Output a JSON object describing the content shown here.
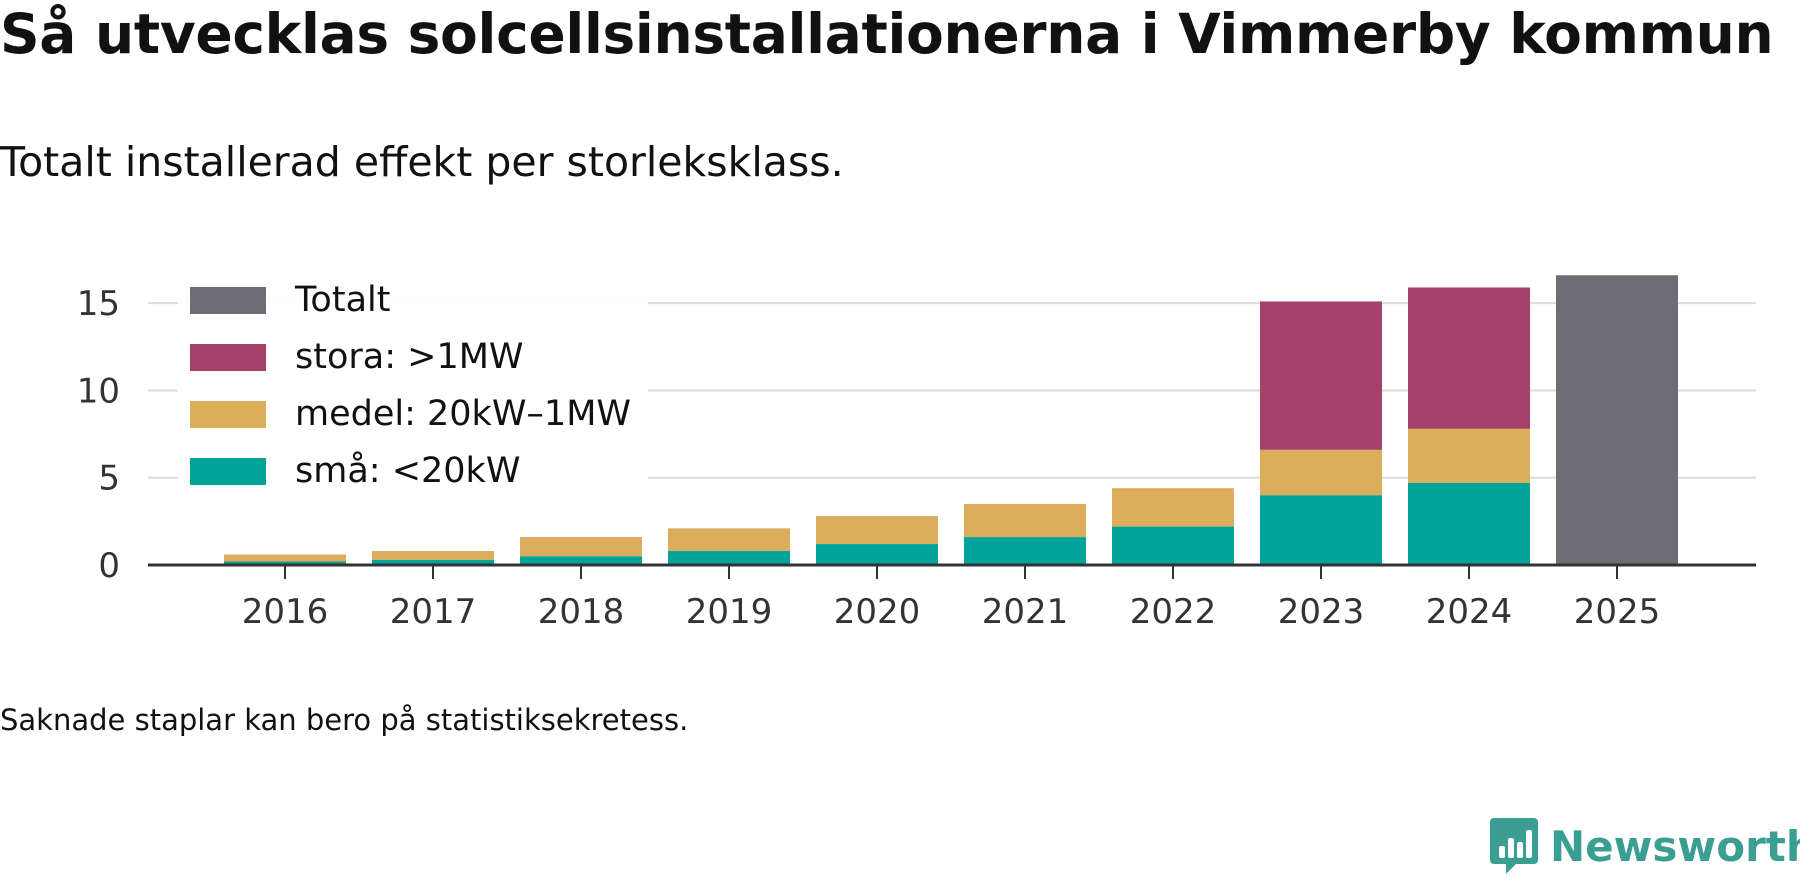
{
  "title": "Så utvecklas solcellsinstallationerna i Vimmerby kommun",
  "subtitle": "Totalt installerad effekt per storleksklass.",
  "note": "Saknade staplar kan bero på statistiksekretess.",
  "brand": {
    "name": "Newsworthy",
    "color": "#3a9e92",
    "icon": "bar-chart-speech-bubble-icon"
  },
  "colors": {
    "totalt": "#6e6c75",
    "stora": "#a6416a",
    "medel": "#dcae5c",
    "sma": "#00a39a"
  },
  "chart_data": {
    "type": "bar",
    "stacked": true,
    "title": "Så utvecklas solcellsinstallationerna i Vimmerby kommun",
    "subtitle": "Totalt installerad effekt per storleksklass.",
    "xlabel": "",
    "ylabel": "",
    "ylim": [
      0,
      16.5
    ],
    "yticks": [
      "0",
      "5",
      "10",
      "15"
    ],
    "grid": true,
    "legend_position": "top-left",
    "categories": [
      "2016",
      "2017",
      "2018",
      "2019",
      "2020",
      "2021",
      "2022",
      "2023",
      "2024",
      "2025"
    ],
    "series": [
      {
        "name": "små: <20kW",
        "key": "sma",
        "values": [
          0.2,
          0.3,
          0.5,
          0.8,
          1.2,
          1.6,
          2.2,
          4.0,
          4.7,
          null
        ]
      },
      {
        "name": "medel: 20kW–1MW",
        "key": "medel",
        "values": [
          0.4,
          0.5,
          1.1,
          1.3,
          1.6,
          1.9,
          2.2,
          2.6,
          3.1,
          null
        ]
      },
      {
        "name": "stora: >1MW",
        "key": "stora",
        "values": [
          null,
          null,
          null,
          null,
          null,
          null,
          null,
          8.5,
          8.1,
          null
        ]
      },
      {
        "name": "Totalt",
        "key": "totalt",
        "values": [
          null,
          null,
          null,
          null,
          null,
          null,
          null,
          null,
          null,
          16.6
        ]
      }
    ],
    "legend": [
      {
        "label": "Totalt",
        "key": "totalt"
      },
      {
        "label": "stora: >1MW",
        "key": "stora"
      },
      {
        "label": "medel: 20kW–1MW",
        "key": "medel"
      },
      {
        "label": "små: <20kW",
        "key": "sma"
      }
    ]
  }
}
